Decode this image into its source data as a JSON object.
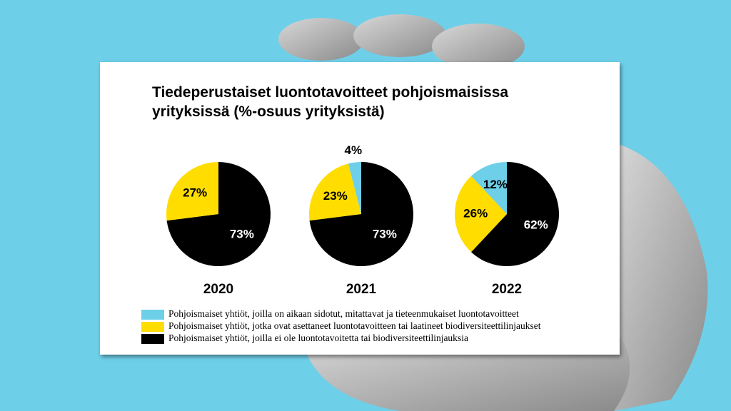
{
  "chart_data": {
    "type": "pie",
    "title": "Tiedeperustaiset luontotavoitteet pohjoismaisissa yrityksissä (%-osuus yrityksistä)",
    "categories": [
      "Pohjoismaiset yhtiöt, joilla on aikaan sidotut, mitattavat ja tieteenmukaiset luontotavoitteet",
      "Pohjoismaiset yhtiöt, jotka ovat asettaneet luontotavoitteen tai laatineet biodiversiteettilinjaukset",
      "Pohjoismaiset yhtiöt, joilla ei ole luontotavoitetta tai biodiversiteettilinjauksia"
    ],
    "colors": [
      "#6ecfe9",
      "#ffdd00",
      "#000000"
    ],
    "series": [
      {
        "name": "2020",
        "values": [
          null,
          27,
          73
        ],
        "value_labels": [
          null,
          "27%",
          "73%"
        ]
      },
      {
        "name": "2021",
        "values": [
          4,
          23,
          73
        ],
        "value_labels": [
          "4%",
          "23%",
          "73%"
        ]
      },
      {
        "name": "2022",
        "values": [
          12,
          26,
          62
        ],
        "value_labels": [
          "12%",
          "26%",
          "62%"
        ]
      }
    ]
  }
}
